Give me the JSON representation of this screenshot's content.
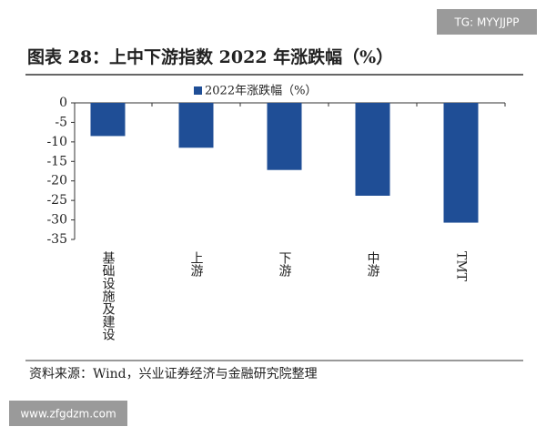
{
  "chart_data": {
    "type": "bar",
    "title": "图表 28：上中下游指数 2022 年涨跌幅（%）",
    "categories": [
      "基础设施及建设",
      "上游",
      "下游",
      "中游",
      "TMT"
    ],
    "series": [
      {
        "name": "2022年涨跌幅（%）",
        "color": "#1f4e96",
        "values": [
          -8.5,
          -11.5,
          -17.2,
          -23.8,
          -30.7
        ]
      }
    ],
    "ylim": [
      -35,
      0
    ],
    "yticks": [
      0,
      -5,
      -10,
      -15,
      -20,
      -25,
      -30,
      -35
    ],
    "legend": "top",
    "source": "资料来源：Wind，兴业证券经济与金融研究院整理"
  },
  "watermarks": [
    "TG: MYYJJPP",
    "www.zfgdzm.com"
  ]
}
